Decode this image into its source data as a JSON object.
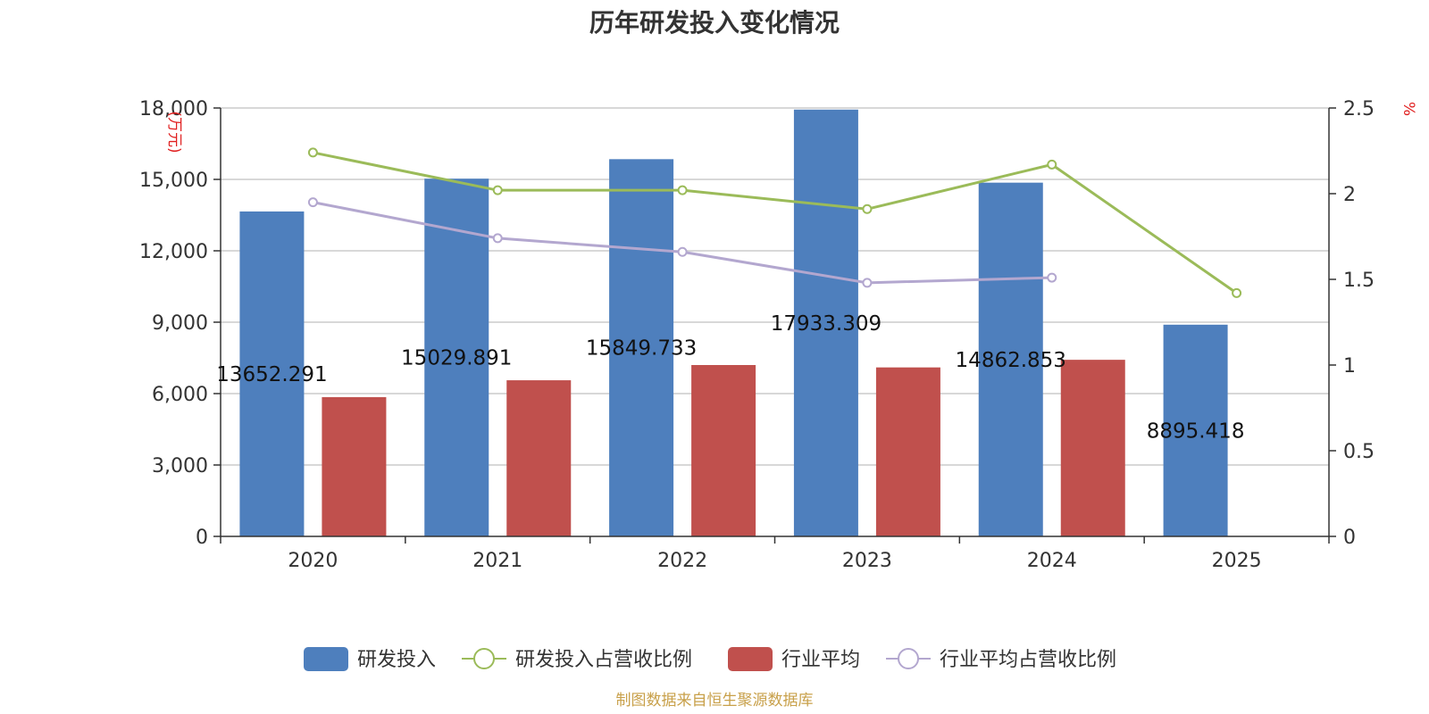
{
  "title": "历年研发投入变化情况",
  "source": "制图数据来自恒生聚源数据库",
  "chart_data": {
    "type": "bar",
    "categories": [
      "2020",
      "2021",
      "2022",
      "2023",
      "2024",
      "2025"
    ],
    "y_left": {
      "label": "(万元)",
      "range": [
        0,
        18000
      ],
      "ticks": [
        "0",
        "3,000",
        "6,000",
        "9,000",
        "12,000",
        "15,000",
        "18,000"
      ]
    },
    "y_right": {
      "label": "%",
      "range": [
        0,
        2.5
      ],
      "ticks": [
        "0",
        "0.5",
        "1",
        "1.5",
        "2",
        "2.5"
      ]
    },
    "grid": true,
    "legend_position": "bottom",
    "series": [
      {
        "name": "研发投入",
        "type": "bar",
        "axis": "left",
        "color": "#4e7fbd",
        "values": [
          13652.291,
          15029.891,
          15849.733,
          17933.309,
          14862.853,
          8895.418
        ],
        "labels": [
          "13652.291",
          "15029.891",
          "15849.733",
          "17933.309",
          "14862.853",
          "8895.418"
        ]
      },
      {
        "name": "研发投入占营收比例",
        "type": "line",
        "axis": "right",
        "color": "#9bbb59",
        "values": [
          2.24,
          2.02,
          2.02,
          1.91,
          2.17,
          1.42
        ]
      },
      {
        "name": "行业平均",
        "type": "bar",
        "axis": "left",
        "color": "#c0504d",
        "values": [
          5850,
          6560,
          7200,
          7100,
          7420,
          null
        ]
      },
      {
        "name": "行业平均占营收比例",
        "type": "line",
        "axis": "right",
        "color": "#b3a7cf",
        "values": [
          1.95,
          1.74,
          1.66,
          1.48,
          1.51,
          null
        ]
      }
    ]
  }
}
